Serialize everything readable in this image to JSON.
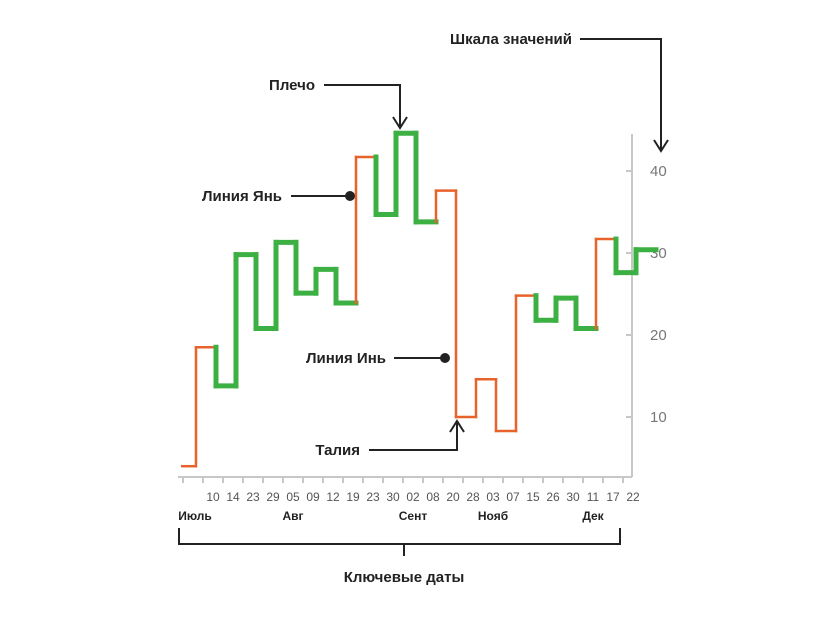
{
  "chart_data": {
    "type": "line",
    "subtype": "kagi",
    "y_axis": {
      "ticks": [
        10,
        20,
        30,
        40
      ],
      "range": [
        3,
        44
      ],
      "position": "right"
    },
    "x_ticks": [
      "10",
      "14",
      "23",
      "29",
      "05",
      "09",
      "12",
      "19",
      "23",
      "30",
      "02",
      "08",
      "20",
      "28",
      "03",
      "07",
      "15",
      "26",
      "30",
      "11",
      "17",
      "22"
    ],
    "months": [
      {
        "label": "Июль",
        "tick_index": -1
      },
      {
        "label": "Авг",
        "tick_index": 4
      },
      {
        "label": "Сент",
        "tick_index": 10
      },
      {
        "label": "Нояб",
        "tick_index": 14
      },
      {
        "label": "Дек",
        "tick_index": 19
      }
    ],
    "kagi_levels": [
      4,
      18.5,
      13.8,
      29.8,
      20.8,
      31.3,
      25.1,
      28,
      23.9,
      41.7,
      34.7,
      44.6,
      33.8,
      37.6,
      10,
      14.6,
      8.3,
      24.8,
      21.8,
      24.5,
      20.8,
      31.7,
      27.6,
      30.4
    ],
    "segments": [
      {
        "trend": "yin"
      },
      {
        "trend": "yang"
      },
      {
        "trend": "yang"
      },
      {
        "trend": "yang"
      },
      {
        "trend": "yang"
      },
      {
        "trend": "yang"
      },
      {
        "trend": "yang"
      },
      {
        "trend": "yang"
      },
      {
        "trend": "yin"
      },
      {
        "trend": "yang"
      },
      {
        "trend": "yang"
      },
      {
        "trend": "yang"
      },
      {
        "trend": "yin"
      },
      {
        "trend": "yin"
      },
      {
        "trend": "yin"
      },
      {
        "trend": "yin"
      },
      {
        "trend": "yin"
      },
      {
        "trend": "yang"
      },
      {
        "trend": "yang"
      },
      {
        "trend": "yang"
      },
      {
        "trend": "yin"
      },
      {
        "trend": "yang"
      },
      {
        "trend": "yang"
      }
    ],
    "colors": {
      "yang": "#3cb043",
      "yin": "#e8622c",
      "axis": "#c8c8c8",
      "annotation": "#222222"
    }
  },
  "annotations": {
    "scale": "Шкала значений",
    "shoulder": "Плечо",
    "yang_line": "Линия Янь",
    "yin_line": "Линия Инь",
    "waist": "Талия",
    "key_dates": "Ключевые даты"
  }
}
